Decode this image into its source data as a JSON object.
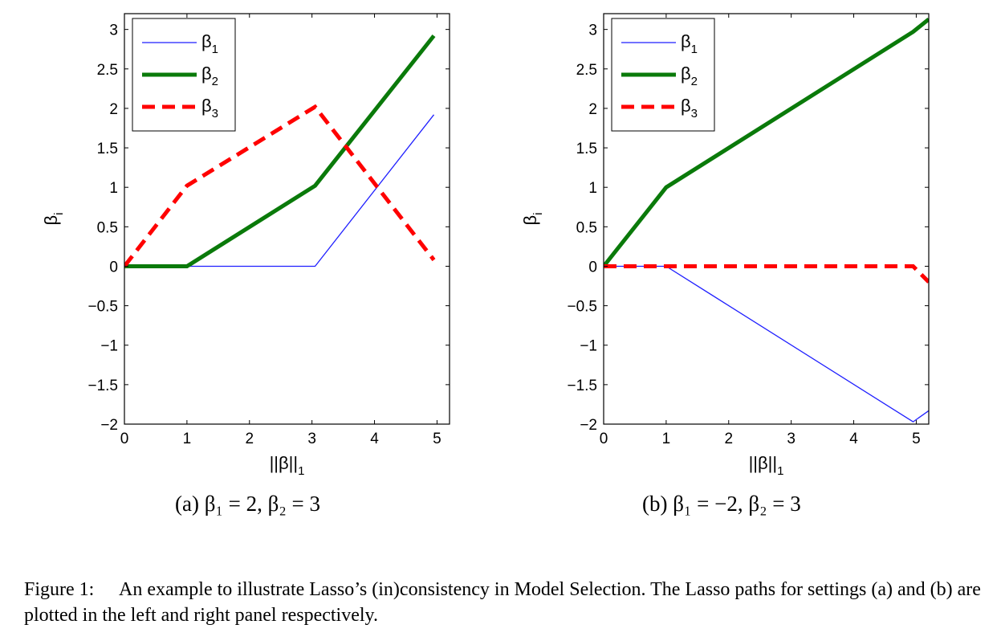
{
  "chart_data": [
    {
      "type": "line",
      "panel": "a",
      "xlabel": "||β||",
      "xlabel_sub": "1",
      "ylabel": "β",
      "ylabel_sub": "i",
      "xlim": [
        0,
        5.2
      ],
      "ylim": [
        -2,
        3.2
      ],
      "xticks": [
        0,
        1,
        2,
        3,
        4,
        5
      ],
      "yticks": [
        -2,
        -1.5,
        -1,
        -0.5,
        0,
        0.5,
        1,
        1.5,
        2,
        2.5,
        3
      ],
      "ytick_labels": [
        "−2",
        "−1.5",
        "−1",
        "−0.5",
        "0",
        "0.5",
        "1",
        "1.5",
        "2",
        "2.5",
        "3"
      ],
      "legend_position": "top-left",
      "series": [
        {
          "name": "β",
          "name_sub": "1",
          "color": "#1f1fff",
          "style": "thin-solid",
          "x": [
            0,
            1,
            3.05,
            4.95
          ],
          "y": [
            0,
            0,
            0,
            1.92
          ]
        },
        {
          "name": "β",
          "name_sub": "2",
          "color": "#0a7a0a",
          "style": "thick-solid",
          "x": [
            0,
            1,
            3.05,
            4.95
          ],
          "y": [
            0,
            0,
            1.02,
            2.92
          ]
        },
        {
          "name": "β",
          "name_sub": "3",
          "color": "#ff0000",
          "style": "thick-dashed",
          "x": [
            0,
            1,
            3.05,
            4.95
          ],
          "y": [
            0,
            1.02,
            2.02,
            0.08
          ]
        }
      ]
    },
    {
      "type": "line",
      "panel": "b",
      "xlabel": "||β||",
      "xlabel_sub": "1",
      "ylabel": "β",
      "ylabel_sub": "i",
      "xlim": [
        0,
        5.2
      ],
      "ylim": [
        -2,
        3.2
      ],
      "xticks": [
        0,
        1,
        2,
        3,
        4,
        5
      ],
      "yticks": [
        -2,
        -1.5,
        -1,
        -0.5,
        0,
        0.5,
        1,
        1.5,
        2,
        2.5,
        3
      ],
      "ytick_labels": [
        "−2",
        "−1.5",
        "−1",
        "−0.5",
        "0",
        "0.5",
        "1",
        "1.5",
        "2",
        "2.5",
        "3"
      ],
      "legend_position": "top-left",
      "series": [
        {
          "name": "β",
          "name_sub": "1",
          "color": "#1f1fff",
          "style": "thin-solid",
          "x": [
            0,
            1,
            4.95,
            5.2
          ],
          "y": [
            0,
            0,
            -1.97,
            -1.83
          ]
        },
        {
          "name": "β",
          "name_sub": "2",
          "color": "#0a7a0a",
          "style": "thick-solid",
          "x": [
            0,
            1,
            4.95,
            5.2
          ],
          "y": [
            0,
            1.0,
            2.97,
            3.13
          ]
        },
        {
          "name": "β",
          "name_sub": "3",
          "color": "#ff0000",
          "style": "thick-dashed",
          "x": [
            0,
            1,
            4.95,
            5.2
          ],
          "y": [
            0,
            0,
            0,
            -0.2
          ]
        }
      ]
    }
  ],
  "subcaption_a": "(a) β₁ = 2, β₂ = 3",
  "subcaption_b": "(b) β₁ = −2, β₂ = 3",
  "caption_label": "Figure 1:",
  "caption_text": "An example to illustrate Lasso’s (in)consistency in Model Selection. The Lasso paths for settings (a) and (b) are plotted in the left and right panel respectively."
}
